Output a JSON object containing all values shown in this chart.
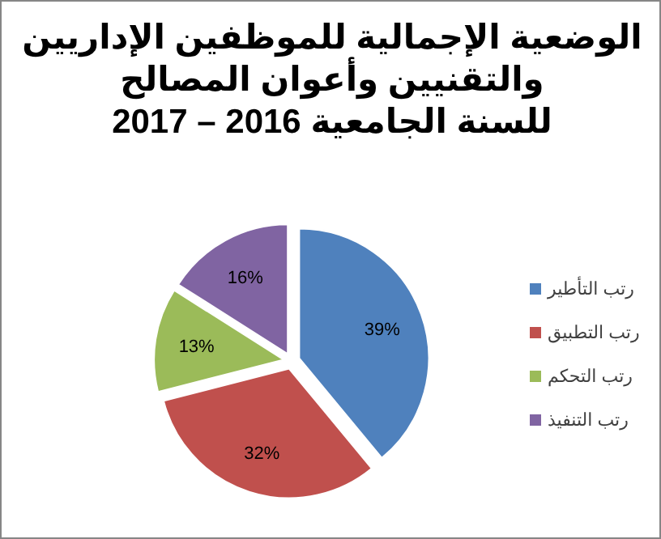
{
  "chart_data": {
    "type": "pie",
    "title": "الوضعية الإجمالية للموظفين الإداريين\nوالتقنيين وأعوان المصالح\nللسنة الجامعية 2016 – 2017",
    "categories": [
      "رتب التأطير",
      "رتب التطبيق",
      "رتب التحكم",
      "رتب التنفيذ"
    ],
    "values": [
      39,
      32,
      13,
      16
    ],
    "colors": [
      "#4f81bd",
      "#c0504d",
      "#9bbb59",
      "#8064a2"
    ],
    "value_labels": [
      "39%",
      "32%",
      "13%",
      "16%"
    ],
    "legend": "right"
  }
}
